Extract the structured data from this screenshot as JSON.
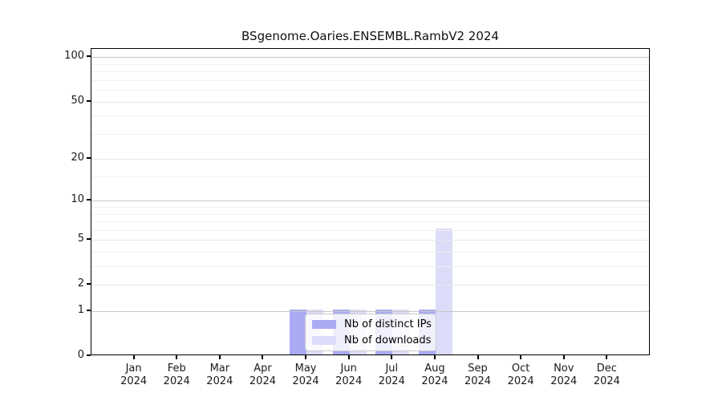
{
  "chart_data": {
    "type": "bar",
    "title": "BSgenome.Oaries.ENSEMBL.RambV2 2024",
    "categories": [
      "Jan 2024",
      "Feb 2024",
      "Mar 2024",
      "Apr 2024",
      "May 2024",
      "Jun 2024",
      "Jul 2024",
      "Aug 2024",
      "Sep 2024",
      "Oct 2024",
      "Nov 2024",
      "Dec 2024"
    ],
    "series": [
      {
        "name": "Nb of distinct IPs",
        "color": "#aaaaf5",
        "values": [
          0,
          0,
          0,
          0,
          1,
          1,
          1,
          1,
          0,
          0,
          0,
          0
        ]
      },
      {
        "name": "Nb of downloads",
        "color": "#dcdcf9",
        "values": [
          0,
          0,
          0,
          0,
          1,
          1,
          1,
          6,
          0,
          0,
          0,
          0
        ]
      }
    ],
    "xlabel": "",
    "ylabel": "",
    "y_scale": "log1p",
    "ylim": [
      0,
      114
    ],
    "y_ticks": [
      100,
      50,
      20,
      10,
      5,
      2,
      1,
      0
    ],
    "y_gridlines_strong": [
      1,
      10,
      100
    ],
    "y_gridlines_light": [
      2,
      5,
      20,
      50
    ],
    "y_gridlines_minor": [
      3,
      4,
      6,
      7,
      8,
      9,
      15,
      30,
      40,
      60,
      70,
      80,
      90
    ],
    "grid": "on",
    "legend_position": "lower-center-inside"
  },
  "colors": {
    "spine": "#000000",
    "gridline_strong": "#c6c6c6",
    "gridline_light": "#e7e7e7",
    "gridline_minor": "#f0f0f0",
    "background": "#ffffff",
    "text": "#1a1a1a"
  }
}
